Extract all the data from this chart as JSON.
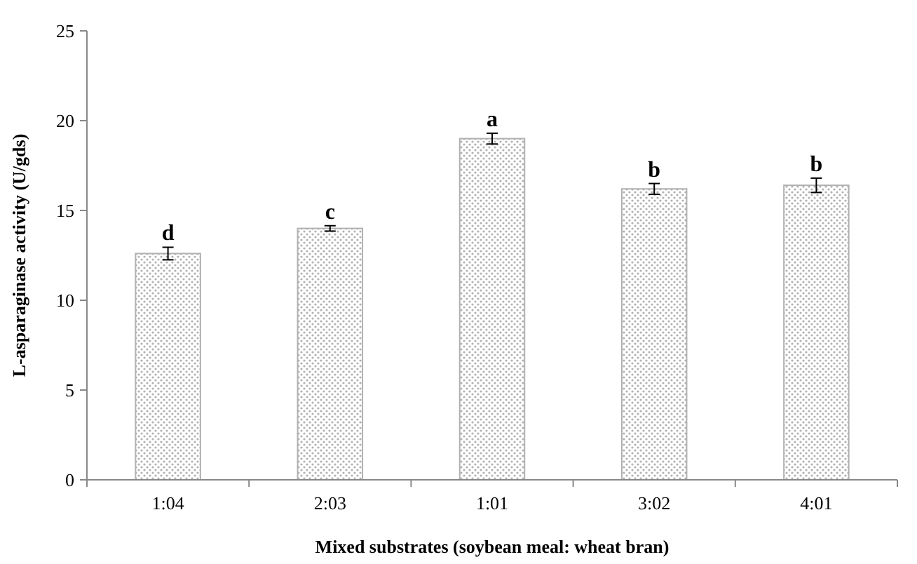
{
  "chart_data": {
    "type": "bar",
    "xlabel": "Mixed substrates (soybean meal: wheat bran)",
    "ylabel": "L-asparaginase activity (U/gds)",
    "categories": [
      "1:04",
      "2:03",
      "1:01",
      "3:02",
      "4:01"
    ],
    "values": [
      12.6,
      14.0,
      19.0,
      16.2,
      16.4
    ],
    "errors": [
      0.35,
      0.15,
      0.3,
      0.3,
      0.4
    ],
    "color": "#b0b0b0",
    "ylim": [
      0,
      25
    ],
    "yticks": [
      0,
      5,
      10,
      15,
      20,
      25
    ],
    "grid": false,
    "annotations": [
      {
        "text": "d",
        "x": "1:04",
        "y": 12.95
      },
      {
        "text": "c",
        "x": "2:03",
        "y": 14.15
      },
      {
        "text": "a",
        "x": "1:01",
        "y": 19.3
      },
      {
        "text": "b",
        "x": "3:02",
        "y": 16.5
      },
      {
        "text": "b",
        "x": "4:01",
        "y": 16.8
      }
    ]
  }
}
